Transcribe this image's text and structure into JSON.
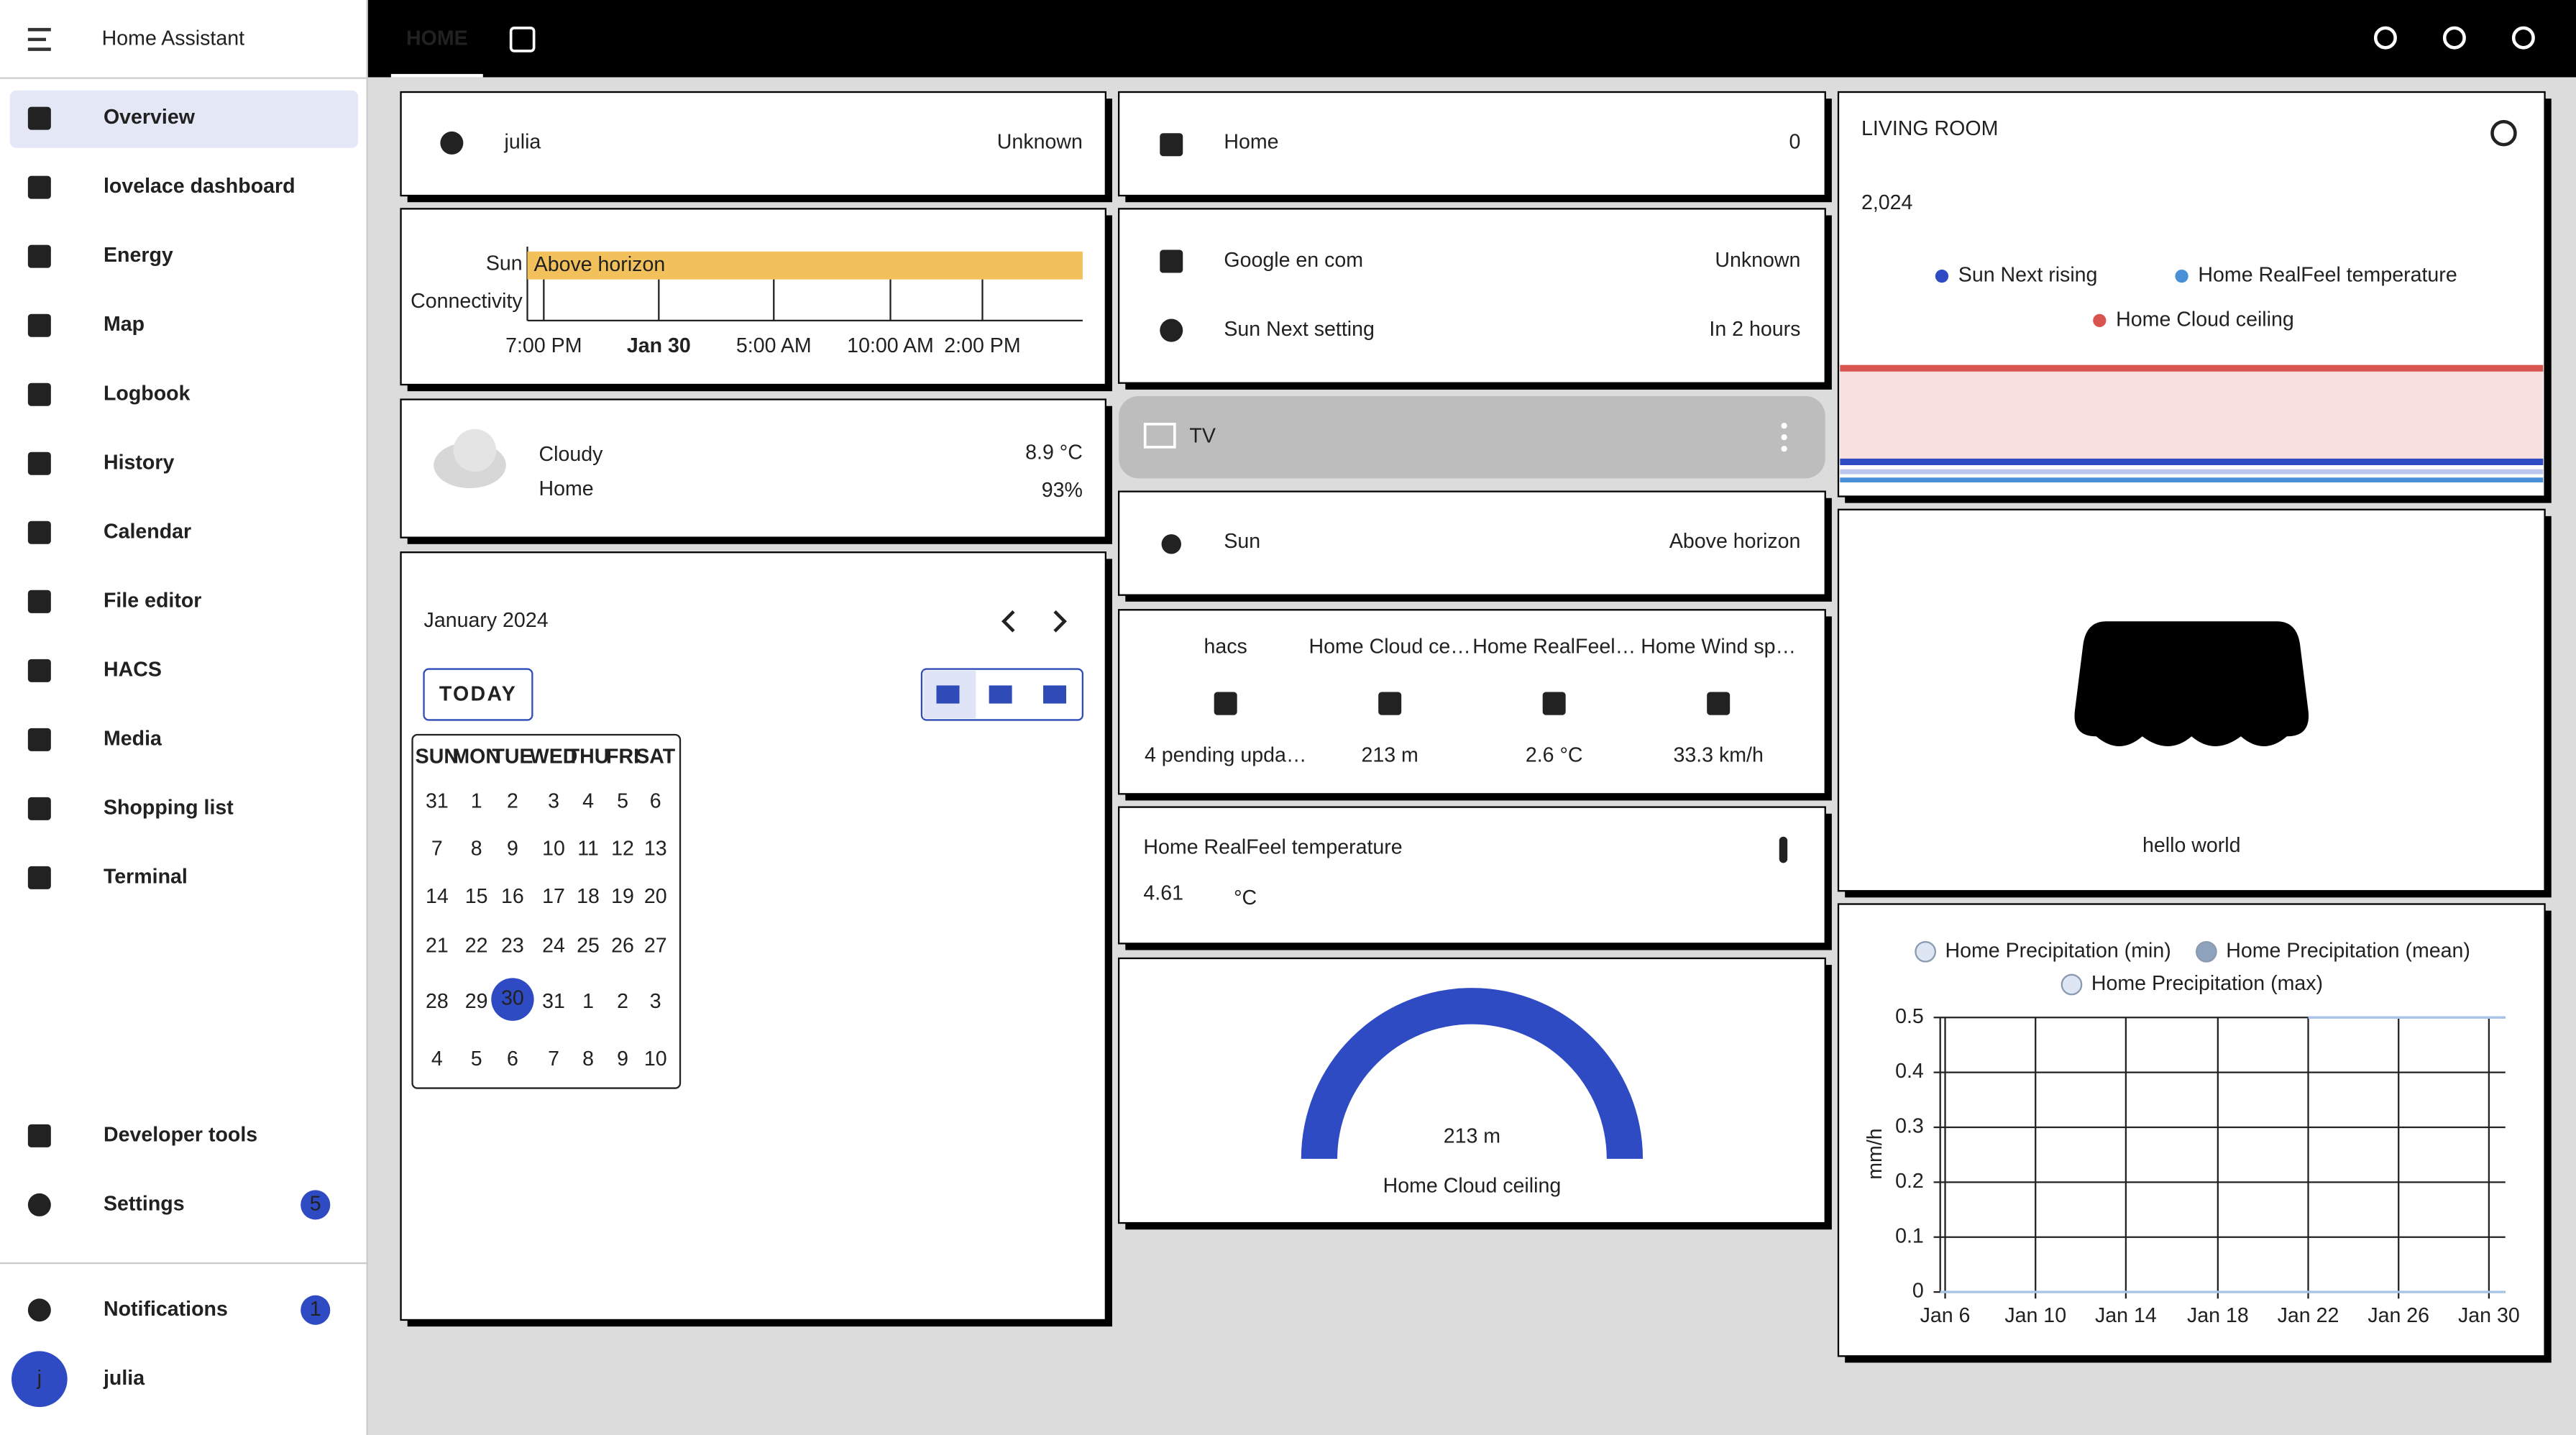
{
  "sidebar": {
    "title": "Home Assistant",
    "items": [
      "Overview",
      "lovelace dashboard",
      "Energy",
      "Map",
      "Logbook",
      "History",
      "Calendar",
      "File editor",
      "HACS",
      "Media",
      "Shopping list",
      "Terminal"
    ],
    "developer_tools": "Developer tools",
    "settings": {
      "label": "Settings",
      "badge": "5"
    },
    "notifications": {
      "label": "Notifications",
      "badge": "1"
    },
    "user": {
      "avatar": "j",
      "name": "julia"
    }
  },
  "topbar": {
    "tab": "HOME"
  },
  "cards": {
    "person": {
      "name": "julia",
      "state": "Unknown"
    },
    "history": {
      "rows": [
        "Sun",
        "Connectivity"
      ],
      "bar": "Above horizon",
      "xticks": [
        "7:00 PM",
        "Jan 30",
        "5:00 AM",
        "10:00 AM",
        "2:00 PM"
      ]
    },
    "weather": {
      "condition": "Cloudy",
      "location": "Home",
      "temperature": "8.9 °C",
      "humidity": "93%"
    },
    "calendar": {
      "month": "January 2024",
      "today": "TODAY",
      "weekdays": [
        "SUN",
        "MON",
        "TUE",
        "WED",
        "THU",
        "FRI",
        "SAT"
      ],
      "weeks": [
        [
          "31",
          "1",
          "2",
          "3",
          "4",
          "5",
          "6"
        ],
        [
          "7",
          "8",
          "9",
          "10",
          "11",
          "12",
          "13"
        ],
        [
          "14",
          "15",
          "16",
          "17",
          "18",
          "19",
          "20"
        ],
        [
          "21",
          "22",
          "23",
          "24",
          "25",
          "26",
          "27"
        ],
        [
          "28",
          "29",
          "30",
          "31",
          "1",
          "2",
          "3"
        ],
        [
          "4",
          "5",
          "6",
          "7",
          "8",
          "9",
          "10"
        ]
      ]
    },
    "home": {
      "name": "Home",
      "state": "0"
    },
    "entities": [
      {
        "name": "Google en com",
        "state": "Unknown"
      },
      {
        "name": "Sun Next setting",
        "state": "In 2 hours"
      }
    ],
    "tv": {
      "name": "TV"
    },
    "sun": {
      "name": "Sun",
      "state": "Above horizon"
    },
    "glance": [
      {
        "name": "hacs",
        "state": "4 pending upda…"
      },
      {
        "name": "Home Cloud ce…",
        "state": "213 m"
      },
      {
        "name": "Home RealFeel…",
        "state": "2.6 °C"
      },
      {
        "name": "Home Wind sp…",
        "state": "33.3 km/h"
      }
    ],
    "sensor": {
      "name": "Home RealFeel temperature",
      "value": "4.61",
      "unit": "°C"
    },
    "gauge": {
      "value": "213 m",
      "name": "Home Cloud ceiling"
    },
    "living_room": {
      "title": "LIVING ROOM",
      "value": "2,024",
      "legend": [
        "Sun Next rising",
        "Home RealFeel temperature",
        "Home Cloud ceiling"
      ]
    },
    "picture": {
      "caption": "hello world"
    },
    "precipitation": {
      "legend": [
        "Home Precipitation (min)",
        "Home Precipitation (mean)",
        "Home Precipitation (max)"
      ],
      "y_label": "mm/h",
      "ylim": [
        0,
        0.5
      ],
      "yticks": [
        0,
        0.1,
        0.2,
        0.3,
        0.4,
        0.5
      ],
      "xticks": [
        "Jan 6",
        "Jan 10",
        "Jan 14",
        "Jan 18",
        "Jan 22",
        "Jan 26",
        "Jan 30"
      ]
    }
  }
}
